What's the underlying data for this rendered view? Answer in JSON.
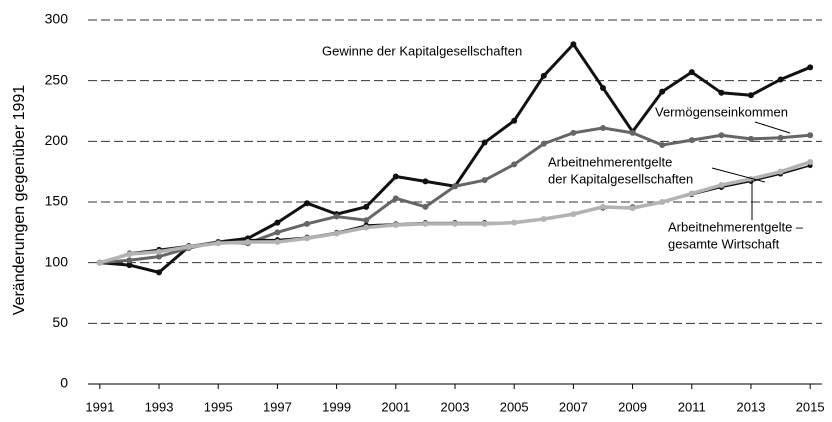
{
  "chart_data": {
    "type": "line",
    "y_label": "Veränderungen gegenüber 1991",
    "x": [
      1991,
      1992,
      1993,
      1994,
      1995,
      1996,
      1997,
      1998,
      1999,
      2000,
      2001,
      2002,
      2003,
      2004,
      2005,
      2006,
      2007,
      2008,
      2009,
      2010,
      2011,
      2012,
      2013,
      2014,
      2015
    ],
    "series": [
      {
        "name": "Gewinne der Kapitalgesellschaften",
        "color": "#111111",
        "values": [
          100,
          98,
          92,
          113,
          117,
          120,
          133,
          149,
          140,
          146,
          171,
          167,
          163,
          199,
          217,
          254,
          280,
          244,
          208,
          241,
          257,
          240,
          238,
          251,
          261
        ]
      },
      {
        "name": "Vermögenseinkommen",
        "color": "#666666",
        "values": [
          100,
          102,
          105,
          112,
          117,
          116,
          125,
          132,
          138,
          135,
          153,
          146,
          163,
          168,
          181,
          198,
          207,
          211,
          207,
          197,
          201,
          205,
          202,
          203,
          205
        ]
      },
      {
        "name": [
          "Arbeitnehmerentgelte",
          "der Kapitalgesellschaften"
        ],
        "color": "#111111",
        "values": [
          100,
          108,
          111,
          114,
          117,
          119,
          119,
          121,
          125,
          131,
          132,
          133,
          133,
          133,
          133,
          136,
          140,
          145,
          146,
          150,
          156,
          162,
          167,
          173,
          180
        ]
      },
      {
        "name": [
          "Arbeitnehmerentgelte –",
          "gesamte Wirtschaft"
        ],
        "color": "#b3b3b3",
        "values": [
          100,
          107,
          109,
          113,
          116,
          117,
          117,
          120,
          124,
          129,
          131,
          132,
          132,
          132,
          133,
          136,
          140,
          146,
          145,
          150,
          157,
          164,
          169,
          175,
          183
        ]
      }
    ],
    "xlim": [
      1990.6,
      2015.4
    ],
    "xticks": [
      1991,
      1993,
      1995,
      1997,
      1999,
      2001,
      2003,
      2005,
      2007,
      2009,
      2011,
      2013,
      2015
    ],
    "ylim": [
      0,
      300
    ],
    "yticks": [
      0,
      50,
      100,
      150,
      200,
      250,
      300
    ],
    "grid": true
  }
}
